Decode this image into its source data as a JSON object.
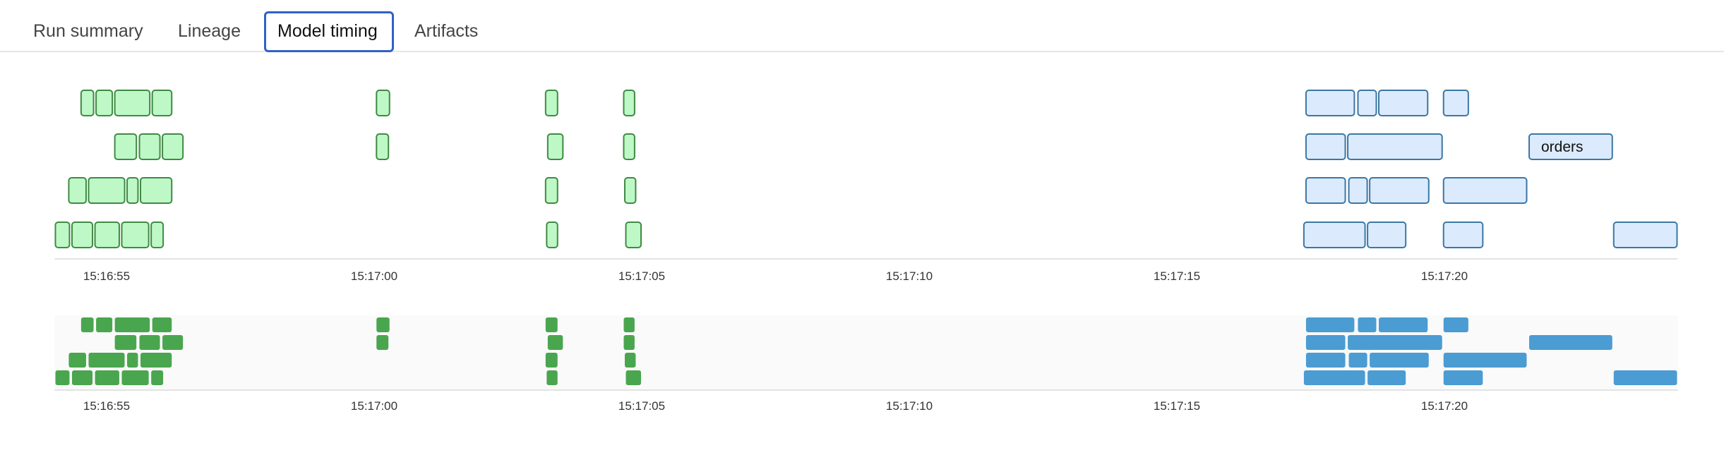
{
  "tabs": [
    {
      "label": "Run summary",
      "active": false
    },
    {
      "label": "Lineage",
      "active": false
    },
    {
      "label": "Model timing",
      "active": true
    },
    {
      "label": "Artifacts",
      "active": false
    }
  ],
  "chart_data": {
    "type": "timeline",
    "x_axis": {
      "range": [
        "15:16:54.03",
        "15:17:24.36"
      ],
      "ticks": [
        "15:16:55",
        "15:17:00",
        "15:17:05",
        "15:17:10",
        "15:17:15",
        "15:17:20"
      ]
    },
    "colors": {
      "green_fill": "#bdf8c6",
      "green_stroke": "#3f8a43",
      "blue_fill": "#dbeafd",
      "blue_stroke": "#3b77a3",
      "green_solid": "#4aa64e",
      "blue_solid": "#4b9cd3"
    },
    "lanes": [
      [
        {
          "start": "15:16:54.51",
          "end": "15:16:54.77",
          "color": "green"
        },
        {
          "start": "15:16:54.79",
          "end": "15:16:55.12",
          "color": "green"
        },
        {
          "start": "15:16:55.14",
          "end": "15:16:55.82",
          "color": "green"
        },
        {
          "start": "15:16:55.84",
          "end": "15:16:56.23",
          "color": "green"
        },
        {
          "start": "15:17:00.03",
          "end": "15:17:00.30",
          "color": "green"
        },
        {
          "start": "15:17:03.19",
          "end": "15:17:03.44",
          "color": "green"
        },
        {
          "start": "15:17:04.65",
          "end": "15:17:04.88",
          "color": "green"
        },
        {
          "start": "15:17:17.40",
          "end": "15:17:18.33",
          "color": "blue"
        },
        {
          "start": "15:17:18.37",
          "end": "15:17:18.74",
          "color": "blue"
        },
        {
          "start": "15:17:18.76",
          "end": "15:17:19.70",
          "color": "blue"
        },
        {
          "start": "15:17:19.97",
          "end": "15:17:20.46",
          "color": "blue"
        }
      ],
      [
        {
          "start": "15:16:55.14",
          "end": "15:16:55.57",
          "color": "green"
        },
        {
          "start": "15:16:55.60",
          "end": "15:16:56.01",
          "color": "green"
        },
        {
          "start": "15:16:56.03",
          "end": "15:16:56.44",
          "color": "green"
        },
        {
          "start": "15:17:00.03",
          "end": "15:17:00.28",
          "color": "green"
        },
        {
          "start": "15:17:03.23",
          "end": "15:17:03.54",
          "color": "green"
        },
        {
          "start": "15:17:04.65",
          "end": "15:17:04.88",
          "color": "green"
        },
        {
          "start": "15:17:17.40",
          "end": "15:17:18.16",
          "color": "blue"
        },
        {
          "start": "15:17:18.18",
          "end": "15:17:19.97",
          "color": "blue"
        },
        {
          "start": "15:17:21.57",
          "end": "15:17:23.15",
          "color": "blue",
          "label": "orders"
        }
      ],
      [
        {
          "start": "15:16:54.28",
          "end": "15:16:54.63",
          "color": "green"
        },
        {
          "start": "15:16:54.65",
          "end": "15:16:55.35",
          "color": "green"
        },
        {
          "start": "15:16:55.37",
          "end": "15:16:55.60",
          "color": "green"
        },
        {
          "start": "15:16:55.62",
          "end": "15:16:56.23",
          "color": "green"
        },
        {
          "start": "15:17:03.19",
          "end": "15:17:03.44",
          "color": "green"
        },
        {
          "start": "15:17:04.67",
          "end": "15:17:04.90",
          "color": "green"
        },
        {
          "start": "15:17:17.40",
          "end": "15:17:18.16",
          "color": "blue"
        },
        {
          "start": "15:17:18.20",
          "end": "15:17:18.57",
          "color": "blue"
        },
        {
          "start": "15:17:18.59",
          "end": "15:17:19.72",
          "color": "blue"
        },
        {
          "start": "15:17:19.97",
          "end": "15:17:21.55",
          "color": "blue"
        }
      ],
      [
        {
          "start": "15:16:54.03",
          "end": "15:16:54.32",
          "color": "green"
        },
        {
          "start": "15:16:54.34",
          "end": "15:16:54.75",
          "color": "green"
        },
        {
          "start": "15:16:54.77",
          "end": "15:16:55.25",
          "color": "green"
        },
        {
          "start": "15:16:55.27",
          "end": "15:16:55.80",
          "color": "green"
        },
        {
          "start": "15:16:55.82",
          "end": "15:16:56.07",
          "color": "green"
        },
        {
          "start": "15:17:03.21",
          "end": "15:17:03.44",
          "color": "green"
        },
        {
          "start": "15:17:04.69",
          "end": "15:17:05.00",
          "color": "green"
        },
        {
          "start": "15:17:17.36",
          "end": "15:17:18.53",
          "color": "blue"
        },
        {
          "start": "15:17:18.55",
          "end": "15:17:19.29",
          "color": "blue"
        },
        {
          "start": "15:17:19.97",
          "end": "15:17:20.73",
          "color": "blue"
        },
        {
          "start": "15:17:23.15",
          "end": "15:17:24.36",
          "color": "blue"
        }
      ]
    ]
  }
}
